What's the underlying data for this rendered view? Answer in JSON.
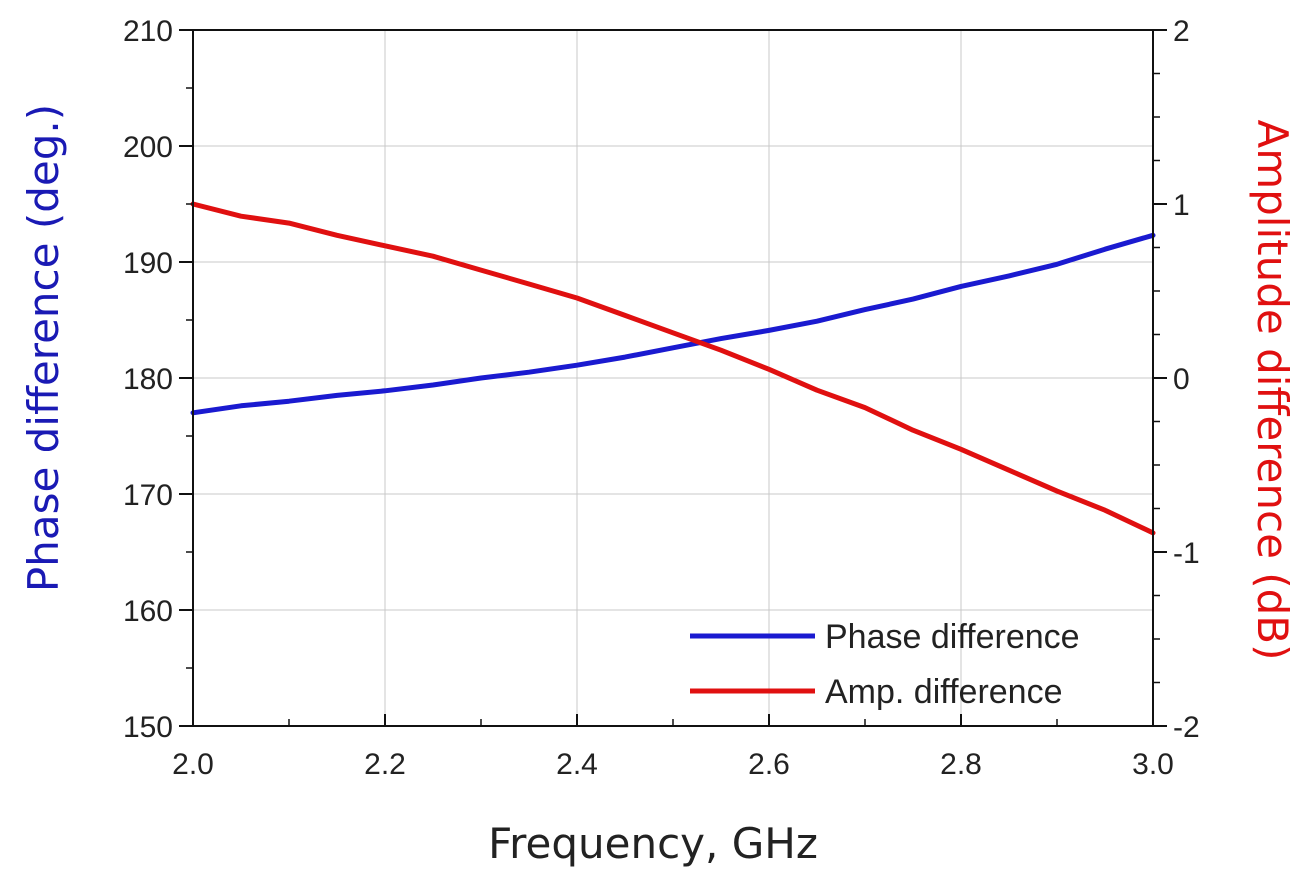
{
  "chart_data": {
    "type": "line",
    "title": "",
    "xlabel": "Frequency, GHz",
    "ylabel_left": "Phase difference (deg.)",
    "ylabel_right": "Amplitude difference (dB)",
    "xlim": [
      2.0,
      3.0
    ],
    "ylim_left": [
      150,
      210
    ],
    "ylim_right": [
      -2,
      2
    ],
    "x_ticks": [
      "2.0",
      "2.2",
      "2.4",
      "2.6",
      "2.8",
      "3.0"
    ],
    "y_left_ticks": [
      "150",
      "160",
      "170",
      "180",
      "190",
      "200",
      "210"
    ],
    "y_right_ticks": [
      "-2",
      "-1",
      "0",
      "1",
      "2"
    ],
    "grid": true,
    "legend_position": "bottom-right",
    "colors": {
      "phase": "#1a1ad0",
      "amplitude": "#e01010",
      "left_axis_title": "#1a1ab4",
      "right_axis_title": "#e01010"
    },
    "x": [
      2.0,
      2.05,
      2.1,
      2.15,
      2.2,
      2.25,
      2.3,
      2.35,
      2.4,
      2.45,
      2.5,
      2.55,
      2.6,
      2.65,
      2.7,
      2.75,
      2.8,
      2.85,
      2.9,
      2.95,
      3.0
    ],
    "series": [
      {
        "name": "Phase difference",
        "axis": "left",
        "values": [
          177.0,
          177.6,
          178.0,
          178.5,
          178.9,
          179.4,
          180.0,
          180.5,
          181.1,
          181.8,
          182.6,
          183.4,
          184.1,
          184.9,
          185.9,
          186.8,
          187.9,
          188.8,
          189.8,
          191.1,
          192.3
        ]
      },
      {
        "name": "Amp. difference",
        "axis": "right",
        "values": [
          1.0,
          0.93,
          0.89,
          0.82,
          0.76,
          0.7,
          0.62,
          0.54,
          0.46,
          0.36,
          0.26,
          0.16,
          0.05,
          -0.07,
          -0.17,
          -0.3,
          -0.41,
          -0.53,
          -0.65,
          -0.76,
          -0.89
        ]
      }
    ]
  }
}
